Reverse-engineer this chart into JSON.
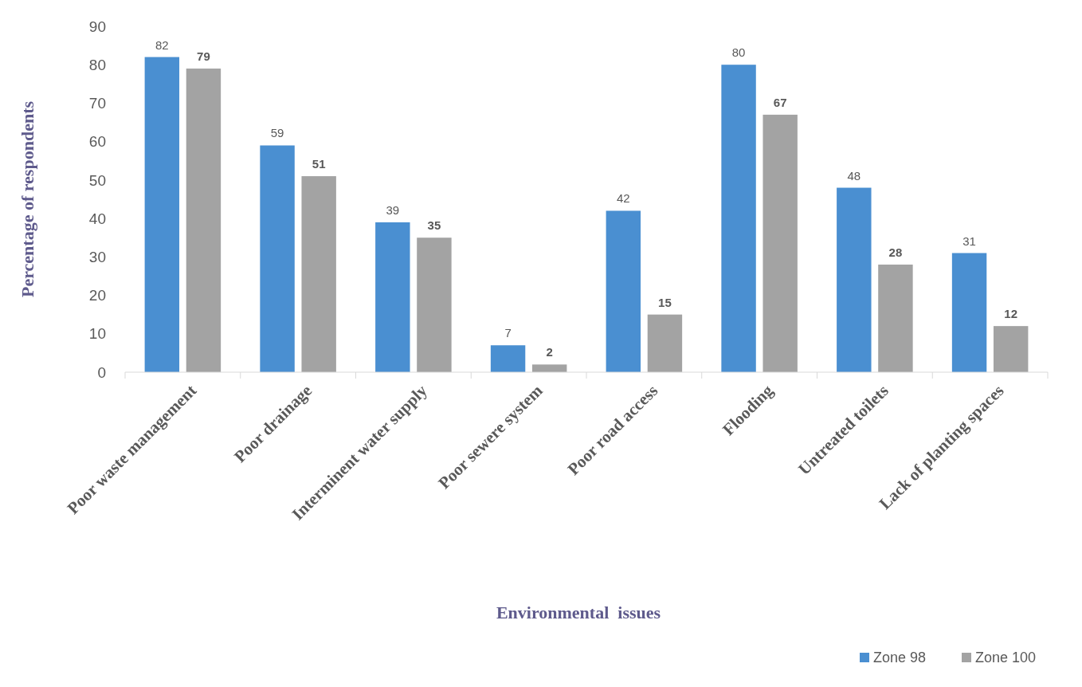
{
  "chart_data": {
    "type": "bar",
    "xlabel": "Environmental  issues",
    "ylabel": "Percentage of respondents",
    "categories": [
      "Poor waste management",
      "Poor drainage",
      "Interminent water supply",
      "Poor sewere system",
      "Poor road access",
      "Flooding",
      "Untreated toilets",
      "Lack of planting spaces"
    ],
    "series": [
      {
        "name": "Zone 98",
        "color": "#4a8fd1",
        "values": [
          82,
          59,
          39,
          7,
          42,
          80,
          48,
          31
        ]
      },
      {
        "name": "Zone 100",
        "color": "#a3a3a3",
        "values": [
          79,
          51,
          35,
          2,
          15,
          67,
          28,
          12
        ]
      }
    ],
    "ylim": [
      0,
      90
    ],
    "yticks": [
      0,
      10,
      20,
      30,
      40,
      50,
      60,
      70,
      80,
      90
    ],
    "data_labels": true,
    "legend": "bottom right",
    "grid": false
  }
}
